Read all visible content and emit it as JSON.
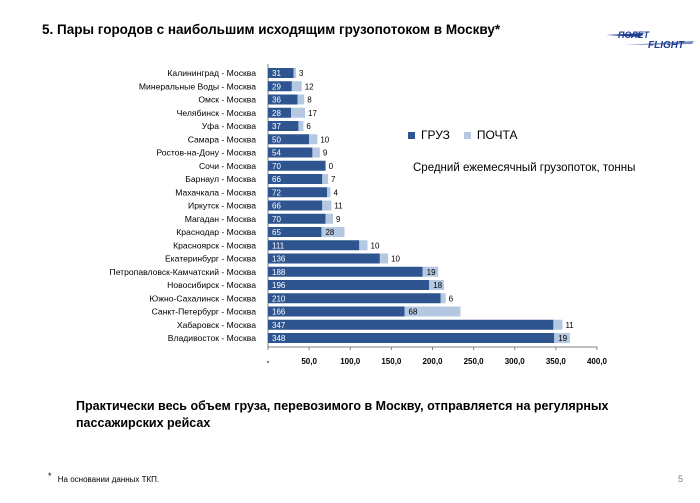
{
  "header": {
    "title": "5. Пары городов с наибольшим  исходящим грузопотоком в Москву*",
    "logo_top": "ПОЛЕТ",
    "logo_bottom": "FLIGHT"
  },
  "legend": {
    "items": [
      {
        "label": "ГРУЗ",
        "color": "#2f5590"
      },
      {
        "label": "ПОЧТА",
        "color": "#b5c8e2"
      }
    ]
  },
  "subtitle": "Средний ежемесячный грузопоток, тонны",
  "chart_data": {
    "type": "bar",
    "orientation": "horizontal",
    "stacked": true,
    "categories": [
      "Калининград  - Москва",
      "Минеральные Воды - Москва",
      "Омск - Москва",
      "Челябинск - Москва",
      "Уфа - Москва",
      "Самара - Москва",
      "Ростов-на-Дону  - Москва",
      "Сочи - Москва",
      "Барнаул - Москва",
      "Махачкала - Москва",
      "Иркутск - Москва",
      "Магадан - Москва",
      "Краснодар - Москва",
      "Красноярск - Москва",
      "Екатеринбург - Москва",
      "Петропавловск-Камчатский - Москва",
      "Новосибирск  - Москва",
      "Южно-Сахалинск  - Москва",
      "Санкт-Петербург - Москва",
      "Хабаровск - Москва",
      "Владивосток - Москва"
    ],
    "series": [
      {
        "name": "ГРУЗ",
        "color": "#2f5590",
        "values": [
          31,
          29,
          36,
          28,
          37,
          50,
          54,
          70,
          66,
          72,
          66,
          70,
          65,
          111,
          136,
          188,
          196,
          210,
          166,
          347,
          348
        ]
      },
      {
        "name": "ПОЧТА",
        "color": "#b5c8e2",
        "values": [
          3,
          12,
          8,
          17,
          6,
          10,
          9,
          0,
          7,
          4,
          11,
          9,
          28,
          10,
          10,
          19,
          18,
          6,
          68,
          11,
          19
        ]
      }
    ],
    "xlim": [
      0,
      400
    ],
    "xticks": [
      "-",
      "50,0",
      "100,0",
      "150,0",
      "200,0",
      "250,0",
      "300,0",
      "350,0",
      "400,0"
    ],
    "grid": false
  },
  "note": "Практически весь объем груза, перевозимого в Москву, отправляется на регулярных пассажирских рейсах",
  "footnote": {
    "star": "*",
    "text": "На основании  данных ТКП."
  },
  "page_number": "5"
}
